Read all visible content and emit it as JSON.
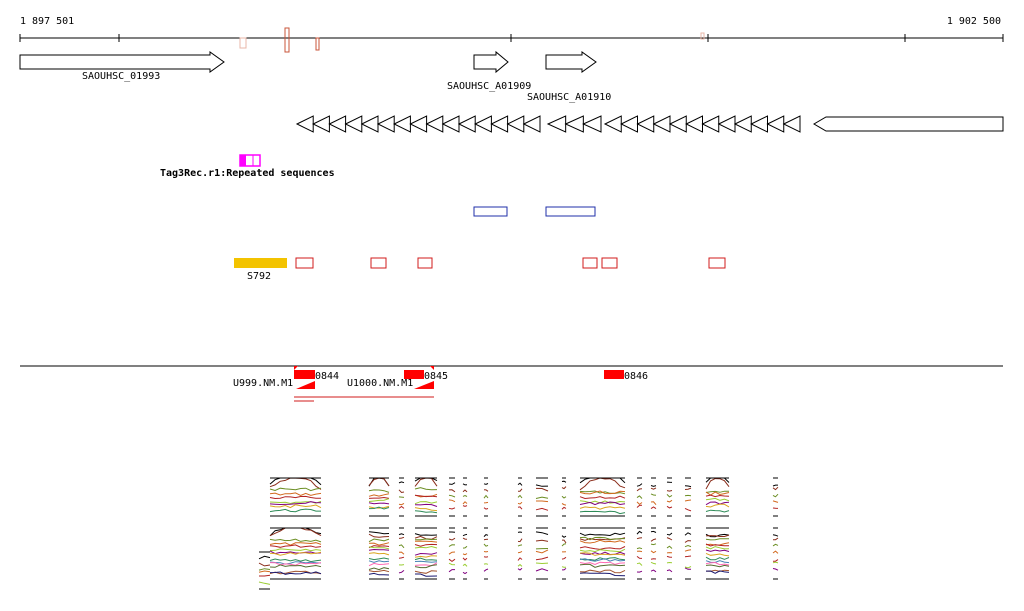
{
  "ruler": {
    "start_label": "1 897 501",
    "end_label": "1 902 500"
  },
  "genes": [
    {
      "id": "SAOUHSC_01993"
    },
    {
      "id": "SAOUHSC_A01909"
    },
    {
      "id": "SAOUHSC_A01910"
    }
  ],
  "repeat_feature": {
    "label": "Tag3Rec.r1:Repeated sequences"
  },
  "srna_feature": {
    "label": "S792"
  },
  "transcripts": [
    {
      "id": "U999.NM.M1"
    },
    {
      "id": "U1000.NM.M1"
    }
  ],
  "probes": [
    {
      "label": "0844"
    },
    {
      "label": "0845"
    },
    {
      "label": "0846"
    }
  ],
  "colors": {
    "gene_outline": "#000000",
    "repeat": "#ff00ff",
    "domain_outline": "#1f2fa8",
    "motif_outline": "#d21b1b",
    "srna_fill": "#f3c300",
    "probe_fill": "#ff0000",
    "transcript_line": "#d21b1b",
    "tick_accent": "#c8543a"
  },
  "expression_palette": [
    "#000000",
    "#8b2d1b",
    "#6b8e23",
    "#d2691e",
    "#b22222",
    "#9acd32",
    "#800080",
    "#daa520",
    "#2e8b57",
    "#4682b4",
    "#ff69b4",
    "#556b2f",
    "#a0522d",
    "#191970",
    "#ff8c00"
  ]
}
